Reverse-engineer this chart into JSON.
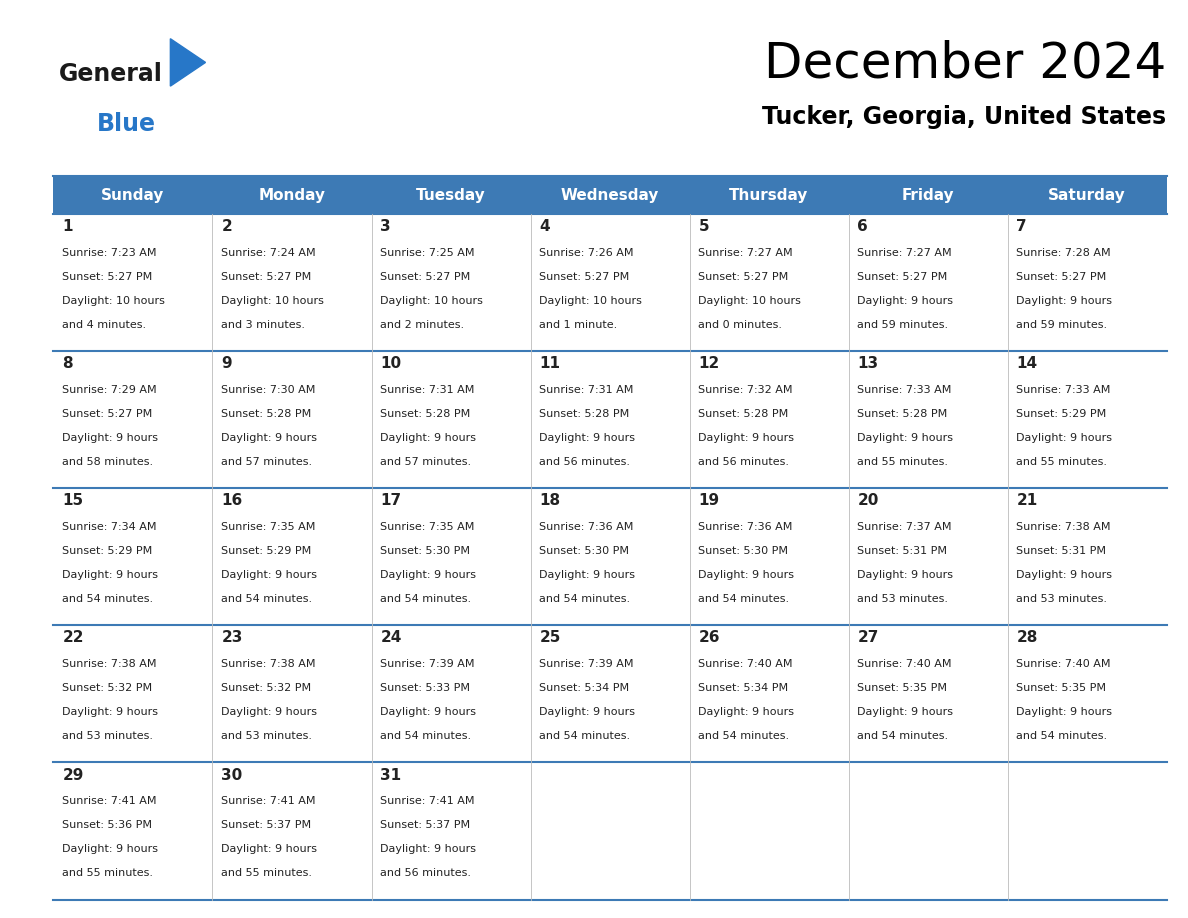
{
  "title": "December 2024",
  "subtitle": "Tucker, Georgia, United States",
  "header_color": "#3d7ab5",
  "header_text_color": "#ffffff",
  "grid_line_color": "#3d7ab5",
  "text_color": "#222222",
  "days_of_week": [
    "Sunday",
    "Monday",
    "Tuesday",
    "Wednesday",
    "Thursday",
    "Friday",
    "Saturday"
  ],
  "weeks": [
    [
      {
        "day": 1,
        "sunrise": "7:23 AM",
        "sunset": "5:27 PM",
        "daylight_line1": "10 hours",
        "daylight_line2": "and 4 minutes."
      },
      {
        "day": 2,
        "sunrise": "7:24 AM",
        "sunset": "5:27 PM",
        "daylight_line1": "10 hours",
        "daylight_line2": "and 3 minutes."
      },
      {
        "day": 3,
        "sunrise": "7:25 AM",
        "sunset": "5:27 PM",
        "daylight_line1": "10 hours",
        "daylight_line2": "and 2 minutes."
      },
      {
        "day": 4,
        "sunrise": "7:26 AM",
        "sunset": "5:27 PM",
        "daylight_line1": "10 hours",
        "daylight_line2": "and 1 minute."
      },
      {
        "day": 5,
        "sunrise": "7:27 AM",
        "sunset": "5:27 PM",
        "daylight_line1": "10 hours",
        "daylight_line2": "and 0 minutes."
      },
      {
        "day": 6,
        "sunrise": "7:27 AM",
        "sunset": "5:27 PM",
        "daylight_line1": "9 hours",
        "daylight_line2": "and 59 minutes."
      },
      {
        "day": 7,
        "sunrise": "7:28 AM",
        "sunset": "5:27 PM",
        "daylight_line1": "9 hours",
        "daylight_line2": "and 59 minutes."
      }
    ],
    [
      {
        "day": 8,
        "sunrise": "7:29 AM",
        "sunset": "5:27 PM",
        "daylight_line1": "9 hours",
        "daylight_line2": "and 58 minutes."
      },
      {
        "day": 9,
        "sunrise": "7:30 AM",
        "sunset": "5:28 PM",
        "daylight_line1": "9 hours",
        "daylight_line2": "and 57 minutes."
      },
      {
        "day": 10,
        "sunrise": "7:31 AM",
        "sunset": "5:28 PM",
        "daylight_line1": "9 hours",
        "daylight_line2": "and 57 minutes."
      },
      {
        "day": 11,
        "sunrise": "7:31 AM",
        "sunset": "5:28 PM",
        "daylight_line1": "9 hours",
        "daylight_line2": "and 56 minutes."
      },
      {
        "day": 12,
        "sunrise": "7:32 AM",
        "sunset": "5:28 PM",
        "daylight_line1": "9 hours",
        "daylight_line2": "and 56 minutes."
      },
      {
        "day": 13,
        "sunrise": "7:33 AM",
        "sunset": "5:28 PM",
        "daylight_line1": "9 hours",
        "daylight_line2": "and 55 minutes."
      },
      {
        "day": 14,
        "sunrise": "7:33 AM",
        "sunset": "5:29 PM",
        "daylight_line1": "9 hours",
        "daylight_line2": "and 55 minutes."
      }
    ],
    [
      {
        "day": 15,
        "sunrise": "7:34 AM",
        "sunset": "5:29 PM",
        "daylight_line1": "9 hours",
        "daylight_line2": "and 54 minutes."
      },
      {
        "day": 16,
        "sunrise": "7:35 AM",
        "sunset": "5:29 PM",
        "daylight_line1": "9 hours",
        "daylight_line2": "and 54 minutes."
      },
      {
        "day": 17,
        "sunrise": "7:35 AM",
        "sunset": "5:30 PM",
        "daylight_line1": "9 hours",
        "daylight_line2": "and 54 minutes."
      },
      {
        "day": 18,
        "sunrise": "7:36 AM",
        "sunset": "5:30 PM",
        "daylight_line1": "9 hours",
        "daylight_line2": "and 54 minutes."
      },
      {
        "day": 19,
        "sunrise": "7:36 AM",
        "sunset": "5:30 PM",
        "daylight_line1": "9 hours",
        "daylight_line2": "and 54 minutes."
      },
      {
        "day": 20,
        "sunrise": "7:37 AM",
        "sunset": "5:31 PM",
        "daylight_line1": "9 hours",
        "daylight_line2": "and 53 minutes."
      },
      {
        "day": 21,
        "sunrise": "7:38 AM",
        "sunset": "5:31 PM",
        "daylight_line1": "9 hours",
        "daylight_line2": "and 53 minutes."
      }
    ],
    [
      {
        "day": 22,
        "sunrise": "7:38 AM",
        "sunset": "5:32 PM",
        "daylight_line1": "9 hours",
        "daylight_line2": "and 53 minutes."
      },
      {
        "day": 23,
        "sunrise": "7:38 AM",
        "sunset": "5:32 PM",
        "daylight_line1": "9 hours",
        "daylight_line2": "and 53 minutes."
      },
      {
        "day": 24,
        "sunrise": "7:39 AM",
        "sunset": "5:33 PM",
        "daylight_line1": "9 hours",
        "daylight_line2": "and 54 minutes."
      },
      {
        "day": 25,
        "sunrise": "7:39 AM",
        "sunset": "5:34 PM",
        "daylight_line1": "9 hours",
        "daylight_line2": "and 54 minutes."
      },
      {
        "day": 26,
        "sunrise": "7:40 AM",
        "sunset": "5:34 PM",
        "daylight_line1": "9 hours",
        "daylight_line2": "and 54 minutes."
      },
      {
        "day": 27,
        "sunrise": "7:40 AM",
        "sunset": "5:35 PM",
        "daylight_line1": "9 hours",
        "daylight_line2": "and 54 minutes."
      },
      {
        "day": 28,
        "sunrise": "7:40 AM",
        "sunset": "5:35 PM",
        "daylight_line1": "9 hours",
        "daylight_line2": "and 54 minutes."
      }
    ],
    [
      {
        "day": 29,
        "sunrise": "7:41 AM",
        "sunset": "5:36 PM",
        "daylight_line1": "9 hours",
        "daylight_line2": "and 55 minutes."
      },
      {
        "day": 30,
        "sunrise": "7:41 AM",
        "sunset": "5:37 PM",
        "daylight_line1": "9 hours",
        "daylight_line2": "and 55 minutes."
      },
      {
        "day": 31,
        "sunrise": "7:41 AM",
        "sunset": "5:37 PM",
        "daylight_line1": "9 hours",
        "daylight_line2": "and 56 minutes."
      },
      null,
      null,
      null,
      null
    ]
  ],
  "logo_text1": "General",
  "logo_text2": "Blue",
  "logo_color1": "#1a1a1a",
  "logo_color2": "#2777c8",
  "logo_arrow_color": "#2777c8"
}
